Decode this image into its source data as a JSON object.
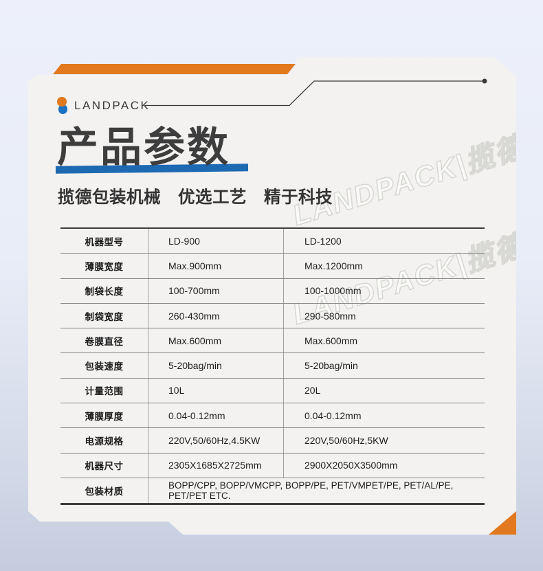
{
  "brand": {
    "name": "LANDPACK"
  },
  "header": {
    "title": "产品参数",
    "subtitle": "揽德包装机械　优选工艺　精于科技"
  },
  "watermark": {
    "text": "LANDPACK|揽德"
  },
  "colors": {
    "accent_orange": "#e2791f",
    "logo_blue": "#1b73c2",
    "underline_blue": "#1d69b2",
    "card_bg": "#f3f2f0",
    "line_dark": "#3a3a3a"
  },
  "table": {
    "rows": [
      {
        "label": "机器型号",
        "values": [
          "LD-900",
          "LD-1200"
        ]
      },
      {
        "label": "薄膜宽度",
        "values": [
          "Max.900mm",
          "Max.1200mm"
        ]
      },
      {
        "label": "制袋长度",
        "values": [
          "100-700mm",
          "100-1000mm"
        ]
      },
      {
        "label": "制袋宽度",
        "values": [
          "260-430mm",
          "290-580mm"
        ]
      },
      {
        "label": "卷膜直径",
        "values": [
          "Max.600mm",
          "Max.600mm"
        ]
      },
      {
        "label": "包装速度",
        "values": [
          "5-20bag/min",
          "5-20bag/min"
        ]
      },
      {
        "label": "计量范围",
        "values": [
          "10L",
          "20L"
        ]
      },
      {
        "label": "薄膜厚度",
        "values": [
          "0.04-0.12mm",
          "0.04-0.12mm"
        ]
      },
      {
        "label": "电源规格",
        "values": [
          "220V,50/60Hz,4.5KW",
          "220V,50/60Hz,5KW"
        ]
      },
      {
        "label": "机器尺寸",
        "values": [
          "2305X1685X2725mm",
          "2900X2050X3500mm"
        ]
      },
      {
        "label": "包装材质",
        "values": [
          "BOPP/CPP, BOPP/VMCPP, BOPP/PE, PET/VMPET/PE, PET/AL/PE, PET/PET ETC."
        ],
        "span": true
      }
    ]
  }
}
